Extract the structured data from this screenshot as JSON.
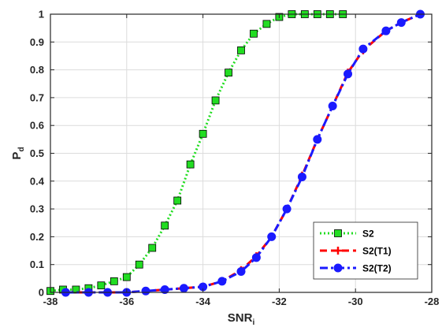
{
  "chart_data": {
    "type": "line",
    "title": "",
    "xlabel": "SNR",
    "xlabel_subscript": "i",
    "ylabel": "P",
    "ylabel_subscript": "d",
    "xlim": [
      -38,
      -28
    ],
    "ylim": [
      0,
      1
    ],
    "xticks": [
      -38,
      -36,
      -34,
      -32,
      -30,
      -28
    ],
    "yticks": [
      0,
      0.1,
      0.2,
      0.3,
      0.4,
      0.5,
      0.6,
      0.7,
      0.8,
      0.9,
      1
    ],
    "grid": true,
    "legend_position": "bottom-right",
    "series": [
      {
        "name": "S2",
        "color": "#22dd22",
        "line_style": "dotted",
        "marker": "square",
        "x": [
          -38,
          -37.67,
          -37.33,
          -37,
          -36.67,
          -36.33,
          -36,
          -35.67,
          -35.33,
          -35,
          -34.67,
          -34.33,
          -34,
          -33.67,
          -33.33,
          -33,
          -32.67,
          -32.33,
          -32,
          -31.67,
          -31.33,
          -31,
          -30.67,
          -30.33
        ],
        "y": [
          0.005,
          0.01,
          0.01,
          0.015,
          0.025,
          0.04,
          0.055,
          0.1,
          0.16,
          0.24,
          0.33,
          0.46,
          0.57,
          0.69,
          0.79,
          0.87,
          0.93,
          0.965,
          0.99,
          1.0,
          1.0,
          1.0,
          1.0,
          1.0
        ]
      },
      {
        "name": "S2(T1)",
        "color": "#ff0000",
        "line_style": "dashed",
        "marker": "plus",
        "x": [
          -37.6,
          -37,
          -36.5,
          -36,
          -35.5,
          -35,
          -34.5,
          -34,
          -33.5,
          -33,
          -32.6,
          -32.2,
          -31.8,
          -31.4,
          -31,
          -30.6,
          -30.2,
          -29.8,
          -29.2,
          -28.8,
          -28.3
        ],
        "y": [
          0.0,
          0.0,
          0.0,
          0.0,
          0.005,
          0.01,
          0.015,
          0.02,
          0.04,
          0.08,
          0.13,
          0.2,
          0.3,
          0.42,
          0.55,
          0.67,
          0.79,
          0.87,
          0.94,
          0.97,
          1.0
        ]
      },
      {
        "name": "S2(T2)",
        "color": "#1a1aff",
        "line_style": "dashdot",
        "marker": "circle",
        "x": [
          -37.6,
          -37,
          -36.5,
          -36,
          -35.5,
          -35,
          -34.5,
          -34,
          -33.5,
          -33,
          -32.6,
          -32.2,
          -31.8,
          -31.4,
          -31,
          -30.6,
          -30.2,
          -29.8,
          -29.2,
          -28.8,
          -28.3
        ],
        "y": [
          0.0,
          0.0,
          0.0,
          0.0,
          0.005,
          0.01,
          0.015,
          0.02,
          0.04,
          0.075,
          0.125,
          0.2,
          0.3,
          0.415,
          0.55,
          0.67,
          0.785,
          0.875,
          0.94,
          0.97,
          1.0
        ]
      }
    ]
  }
}
